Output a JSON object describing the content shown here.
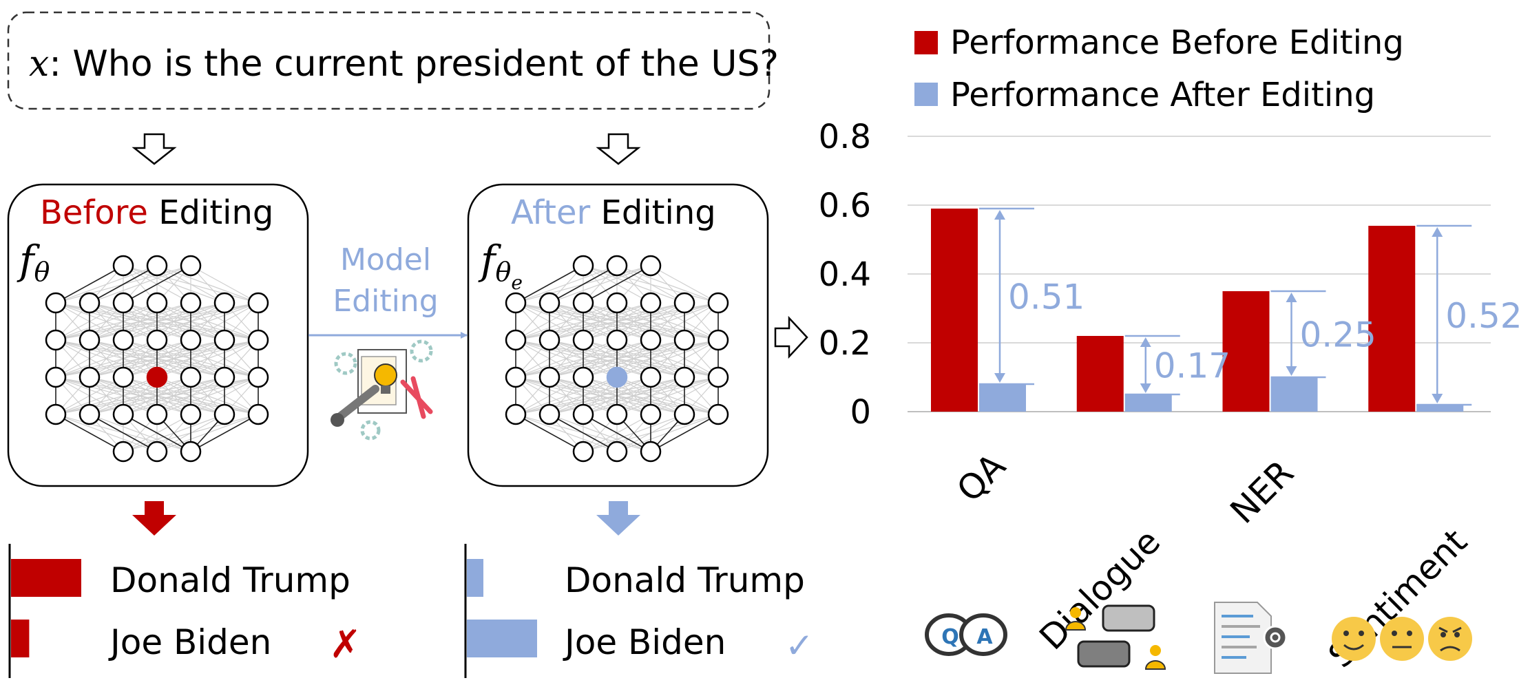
{
  "query": {
    "variable": "x",
    "text": ": Who is the current president of the US?"
  },
  "before_panel": {
    "title_color_word": "Before",
    "title_rest": "Editing",
    "func": "f",
    "subscript": "θ"
  },
  "after_panel": {
    "title_color_word": "After",
    "title_rest": "Editing",
    "func": "f",
    "subscript": "θ",
    "sub_subscript": "e"
  },
  "middle": {
    "line1": "Model",
    "line2": "Editing"
  },
  "before_results": [
    {
      "label": "Donald Trump",
      "score": 0.85
    },
    {
      "label": "Joe Biden",
      "score": 0.22
    }
  ],
  "before_mark": "✗",
  "after_results": [
    {
      "label": "Donald Trump",
      "score": 0.2
    },
    {
      "label": "Joe Biden",
      "score": 0.85
    }
  ],
  "after_mark": "✓",
  "colors": {
    "before": "#c00000",
    "after": "#8faadc",
    "after_text": "#8faadc"
  },
  "chart_data": {
    "type": "bar",
    "title": "",
    "categories": [
      "QA",
      "Dialogue",
      "NER",
      "Sentiment"
    ],
    "series": [
      {
        "name": "Performance Before Editing",
        "values": [
          0.59,
          0.22,
          0.35,
          0.54
        ]
      },
      {
        "name": "Performance After Editing",
        "values": [
          0.08,
          0.05,
          0.1,
          0.02
        ]
      }
    ],
    "annotations": [
      "0.51",
      "0.17",
      "0.25",
      "0.52"
    ],
    "yticks": [
      "0",
      "0.2",
      "0.4",
      "0.6",
      "0.8"
    ],
    "ylim": [
      0,
      0.8
    ],
    "xlabel": "",
    "ylabel": "",
    "legend": "top"
  },
  "icons": {
    "qa": {
      "q": "Q",
      "a": "A"
    }
  }
}
